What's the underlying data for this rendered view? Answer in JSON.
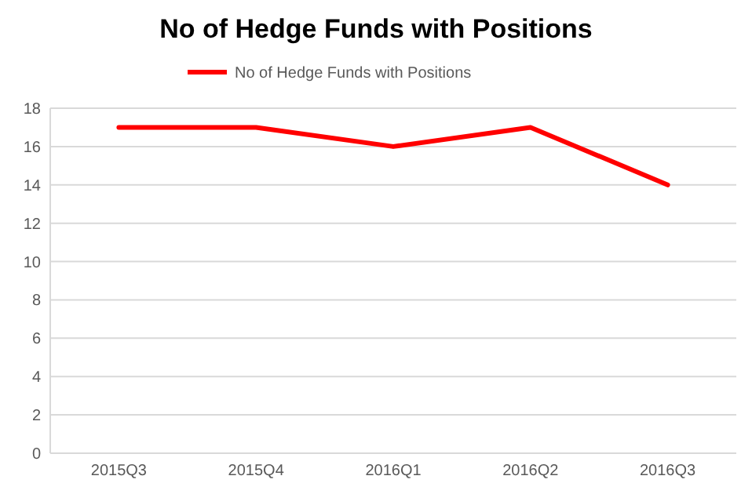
{
  "chart_data": {
    "type": "line",
    "title": "No of Hedge Funds with Positions",
    "categories": [
      "2015Q3",
      "2015Q4",
      "2016Q1",
      "2016Q2",
      "2016Q3"
    ],
    "series": [
      {
        "name": "No of Hedge Funds with Positions",
        "color": "#ff0000",
        "values": [
          17,
          17,
          16,
          17,
          14
        ]
      }
    ],
    "ylim": [
      0,
      18
    ],
    "yticks": [
      0,
      2,
      4,
      6,
      8,
      10,
      12,
      14,
      16,
      18
    ],
    "grid": "y",
    "legend": "top",
    "marker": "none",
    "line_style": "solid"
  }
}
